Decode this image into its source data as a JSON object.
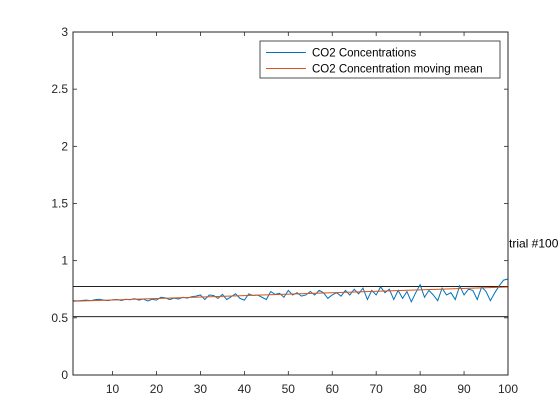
{
  "chart_data": {
    "type": "line",
    "title": "",
    "xlabel": "",
    "ylabel": "",
    "xlim": [
      1,
      100
    ],
    "ylim": [
      0,
      3
    ],
    "xticks": [
      10,
      20,
      30,
      40,
      50,
      60,
      70,
      80,
      90,
      100
    ],
    "yticks": [
      0,
      0.5,
      1,
      1.5,
      2,
      2.5,
      3
    ],
    "grid": false,
    "legend_position": "top-right",
    "series": [
      {
        "name": "CO2 Concentrations",
        "color": "#0072BD",
        "x": [
          1,
          2,
          3,
          4,
          5,
          6,
          7,
          8,
          9,
          10,
          11,
          12,
          13,
          14,
          15,
          16,
          17,
          18,
          19,
          20,
          21,
          22,
          23,
          24,
          25,
          26,
          27,
          28,
          29,
          30,
          31,
          32,
          33,
          34,
          35,
          36,
          37,
          38,
          39,
          40,
          41,
          42,
          43,
          44,
          45,
          46,
          47,
          48,
          49,
          50,
          51,
          52,
          53,
          54,
          55,
          56,
          57,
          58,
          59,
          60,
          61,
          62,
          63,
          64,
          65,
          66,
          67,
          68,
          69,
          70,
          71,
          72,
          73,
          74,
          75,
          76,
          77,
          78,
          79,
          80,
          81,
          82,
          83,
          84,
          85,
          86,
          87,
          88,
          89,
          90,
          91,
          92,
          93,
          94,
          95,
          96,
          97,
          98,
          99,
          100
        ],
        "values": [
          0.65,
          0.648,
          0.652,
          0.655,
          0.65,
          0.658,
          0.662,
          0.655,
          0.65,
          0.658,
          0.66,
          0.652,
          0.662,
          0.658,
          0.668,
          0.655,
          0.665,
          0.648,
          0.662,
          0.655,
          0.68,
          0.675,
          0.66,
          0.672,
          0.665,
          0.68,
          0.672,
          0.685,
          0.69,
          0.7,
          0.66,
          0.7,
          0.695,
          0.67,
          0.705,
          0.66,
          0.685,
          0.71,
          0.67,
          0.655,
          0.71,
          0.695,
          0.7,
          0.68,
          0.66,
          0.73,
          0.705,
          0.715,
          0.68,
          0.74,
          0.7,
          0.72,
          0.69,
          0.7,
          0.73,
          0.7,
          0.74,
          0.72,
          0.67,
          0.7,
          0.72,
          0.69,
          0.74,
          0.7,
          0.75,
          0.71,
          0.76,
          0.66,
          0.74,
          0.7,
          0.77,
          0.72,
          0.75,
          0.66,
          0.74,
          0.67,
          0.73,
          0.64,
          0.72,
          0.79,
          0.68,
          0.74,
          0.7,
          0.65,
          0.76,
          0.7,
          0.72,
          0.66,
          0.78,
          0.7,
          0.75,
          0.74,
          0.66,
          0.77,
          0.73,
          0.65,
          0.72,
          0.78,
          0.83,
          0.84
        ]
      },
      {
        "name": "CO2 Concentration moving mean",
        "color": "#D95319",
        "x": [
          1,
          100
        ],
        "values": [
          0.645,
          0.77
        ]
      }
    ],
    "reference_lines": [
      {
        "y": 0.51,
        "color": "#000000"
      },
      {
        "y": 0.775,
        "color": "#000000"
      }
    ],
    "annotations": [
      {
        "text": "trial #100",
        "x": 100,
        "y": 1.15
      }
    ]
  }
}
